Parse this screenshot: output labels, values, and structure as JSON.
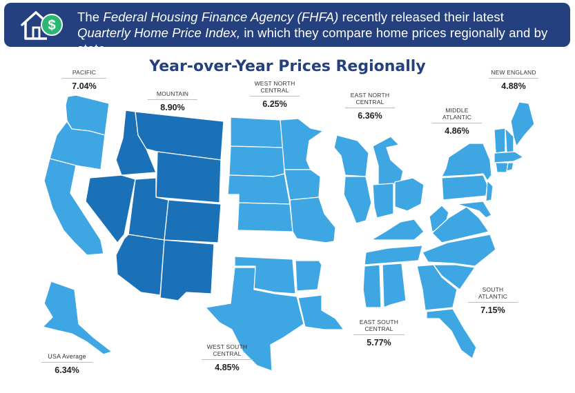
{
  "banner": {
    "icon": "house-dollar-icon",
    "text_part1": "The ",
    "text_italic1": "Federal Housing Finance Agency (FHFA)",
    "text_part2": " recently released their latest ",
    "text_italic2": "Quarterly Home Price Index,",
    "text_part3": " in which they compare home prices regionally and by state."
  },
  "title": "Year-over-Year Prices Regionally",
  "colors": {
    "banner_bg": "#25407e",
    "title": "#25407e",
    "light_blue": "#3ea6e3",
    "dark_blue": "#1a71b8"
  },
  "regions": [
    {
      "id": "pacific",
      "name": "PACIFIC",
      "value": "7.04%"
    },
    {
      "id": "mountain",
      "name": "MOUNTAIN",
      "value": "8.90%"
    },
    {
      "id": "west-north-central",
      "name": "WEST NORTH CENTRAL",
      "value": "6.25%"
    },
    {
      "id": "east-north-central",
      "name": "EAST NORTH CENTRAL",
      "value": "6.36%"
    },
    {
      "id": "middle-atlantic",
      "name": "MIDDLE ATLANTIC",
      "value": "4.86%"
    },
    {
      "id": "new-england",
      "name": "NEW ENGLAND",
      "value": "4.88%"
    },
    {
      "id": "south-atlantic",
      "name": "SOUTH ATLANTIC",
      "value": "7.15%"
    },
    {
      "id": "east-south-central",
      "name": "EAST SOUTH CENTRAL",
      "value": "5.77%"
    },
    {
      "id": "west-south-central",
      "name": "WEST SOUTH CENTRAL",
      "value": "4.85%"
    },
    {
      "id": "usa-average",
      "name": "USA Average",
      "value": "6.34%"
    }
  ]
}
